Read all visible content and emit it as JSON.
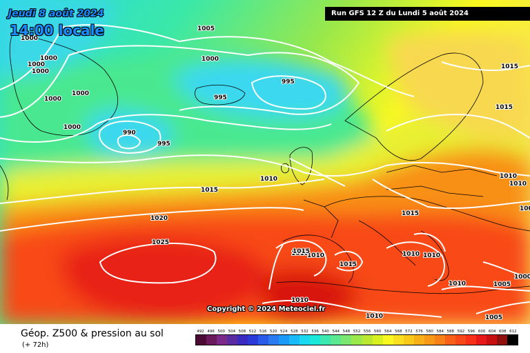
{
  "header": {
    "date": "Jeudi 8 août 2024",
    "local_time": "14:00 locale",
    "run_info": "Run GFS 12 Z du Lundi 5 août 2024"
  },
  "copyright": "Copyright © 2024 Meteociel.fr",
  "footer": {
    "title": "Géop. Z500 & pression au sol",
    "lead_time": "(+ 72h)"
  },
  "legend": {
    "values": [
      "492",
      "496",
      "500",
      "504",
      "508",
      "512",
      "516",
      "520",
      "524",
      "528",
      "532",
      "536",
      "540",
      "544",
      "548",
      "552",
      "556",
      "560",
      "564",
      "568",
      "572",
      "576",
      "580",
      "584",
      "588",
      "592",
      "596",
      "600",
      "604",
      "608",
      "612"
    ],
    "colors": [
      "#4a0a33",
      "#6a1a5a",
      "#7a2a86",
      "#5a2aa0",
      "#3a2ac0",
      "#2a3ad8",
      "#2a5ae8",
      "#2a7af0",
      "#1a9af8",
      "#1abaf8",
      "#1ad8f0",
      "#1ae8d8",
      "#3ae8b0",
      "#5ae890",
      "#7ae870",
      "#9ae84a",
      "#bae830",
      "#d8f020",
      "#f8f820",
      "#f8e020",
      "#f8c81a",
      "#f8b018",
      "#f89818",
      "#f88018",
      "#f86018",
      "#f84818",
      "#f83018",
      "#e81818",
      "#c81010",
      "#901010",
      "#000000"
    ]
  },
  "isobars": [
    {
      "v": "1005"
    },
    {
      "v": "1000"
    },
    {
      "v": "1000"
    },
    {
      "v": "1000"
    },
    {
      "v": "1000"
    },
    {
      "v": "1000"
    },
    {
      "v": "1000"
    },
    {
      "v": "1000"
    },
    {
      "v": "1000"
    },
    {
      "v": "995"
    },
    {
      "v": "995"
    },
    {
      "v": "990"
    },
    {
      "v": "995"
    },
    {
      "v": "1010"
    },
    {
      "v": "1015"
    },
    {
      "v": "1020"
    },
    {
      "v": "1025"
    },
    {
      "v": "1015"
    },
    {
      "v": "1015"
    },
    {
      "v": "1015"
    },
    {
      "v": "1010"
    },
    {
      "v": "1010"
    },
    {
      "v": "1005"
    },
    {
      "v": "1015"
    },
    {
      "v": "1010"
    },
    {
      "v": "1010"
    },
    {
      "v": "1015"
    },
    {
      "v": "1010"
    },
    {
      "v": "1010"
    },
    {
      "v": "1010"
    },
    {
      "v": "1005"
    },
    {
      "v": "1000"
    },
    {
      "v": "1010"
    },
    {
      "v": "1010"
    },
    {
      "v": "1005"
    }
  ]
}
